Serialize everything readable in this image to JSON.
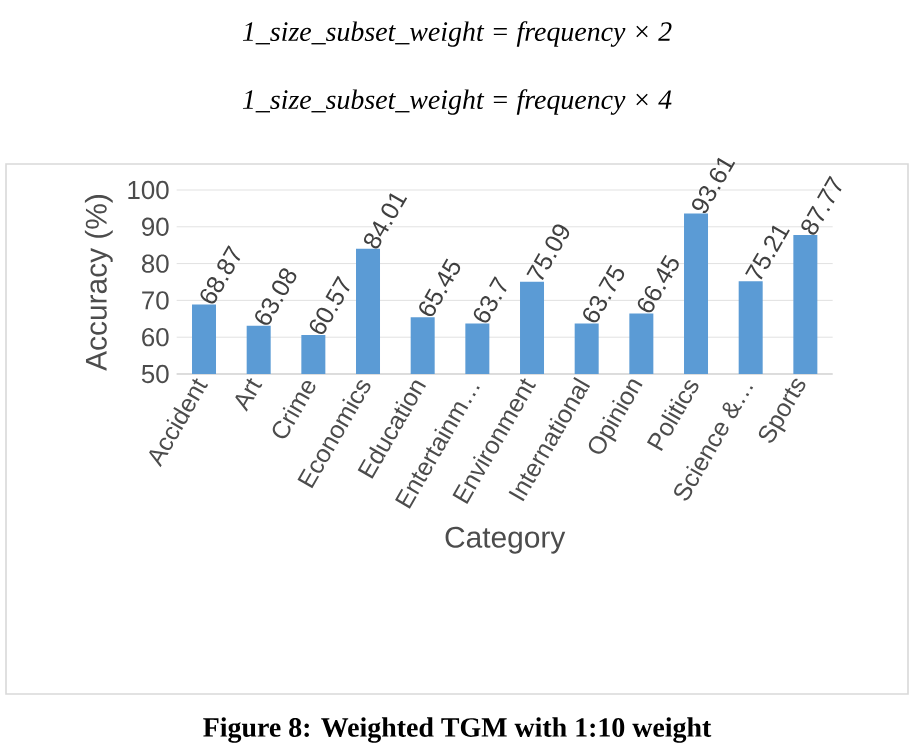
{
  "chart_data": {
    "type": "bar",
    "categories": [
      "Accident",
      "Art",
      "Crime",
      "Economics",
      "Education",
      "Entertainm…",
      "Environment",
      "International",
      "Opinion",
      "Politics",
      "Science &…",
      "Sports"
    ],
    "values": [
      68.87,
      63.08,
      60.57,
      84.01,
      65.45,
      63.7,
      75.09,
      63.75,
      66.45,
      93.61,
      75.21,
      87.77
    ],
    "color": "#5b9bd5",
    "ylim": [
      50,
      100
    ],
    "yticks": [
      50,
      60,
      70,
      80,
      90,
      100
    ],
    "grid": "y",
    "data_labels": true,
    "xlabel": "Category",
    "ylabel": "Accuracy (%)",
    "annotations": [
      "1_size_subset_weight = frequency × 2",
      "1_size_subset_weight = frequency × 4",
      "Figure 8: Weighted TGM with 1:10 weight"
    ]
  }
}
